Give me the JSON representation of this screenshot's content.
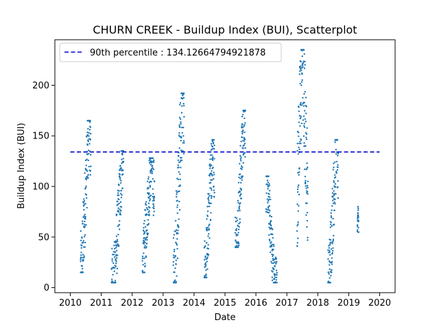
{
  "chart_data": {
    "type": "scatter",
    "title": "CHURN CREEK - Buildup Index (BUI), Scatterplot",
    "xlabel": "Date",
    "ylabel": "Buildup Index (BUI)",
    "xlim": [
      2009.5,
      2020.5
    ],
    "ylim": [
      -5,
      245
    ],
    "x_ticks": [
      2010,
      2011,
      2012,
      2013,
      2014,
      2015,
      2016,
      2017,
      2018,
      2019,
      2020
    ],
    "y_ticks": [
      0,
      50,
      100,
      150,
      200
    ],
    "grid": false,
    "legend": {
      "placement": "upper-left",
      "entries": [
        "90th percentile : 134.12664794921878"
      ]
    },
    "percentile_line": {
      "label": "90th percentile : 134.12664794921878",
      "value": 134.12664794921878,
      "x_start": 2010,
      "x_end": 2020,
      "color": "#0000cc",
      "style": "dashed"
    },
    "series": [
      {
        "color": "#1f77b4",
        "seasons": [
          {
            "start": 2010.33,
            "end": 2010.66,
            "min": 15,
            "max": 165,
            "peak_at": 0.85
          },
          {
            "start": 2011.33,
            "end": 2011.72,
            "min": 5,
            "max": 135,
            "peak_at": 0.95
          },
          {
            "start": 2012.33,
            "end": 2012.72,
            "min": 15,
            "max": 128,
            "peak_at": 0.75
          },
          {
            "start": 2013.33,
            "end": 2013.68,
            "min": 5,
            "max": 192,
            "peak_at": 0.85
          },
          {
            "start": 2014.33,
            "end": 2014.66,
            "min": 10,
            "max": 146,
            "peak_at": 0.85
          },
          {
            "start": 2015.33,
            "end": 2015.66,
            "min": 40,
            "max": 175,
            "peak_at": 0.9
          },
          {
            "start": 2016.33,
            "end": 2016.68,
            "min": 5,
            "max": 110,
            "peak_at": 0.05
          },
          {
            "start": 2017.33,
            "end": 2017.68,
            "min": 15,
            "max": 235,
            "peak_at": 0.5
          },
          {
            "start": 2018.33,
            "end": 2018.66,
            "min": 5,
            "max": 146,
            "peak_at": 0.85
          },
          {
            "start": 2019.28,
            "end": 2019.32,
            "min": 48,
            "max": 80,
            "peak_at": 0.5
          }
        ]
      }
    ]
  }
}
